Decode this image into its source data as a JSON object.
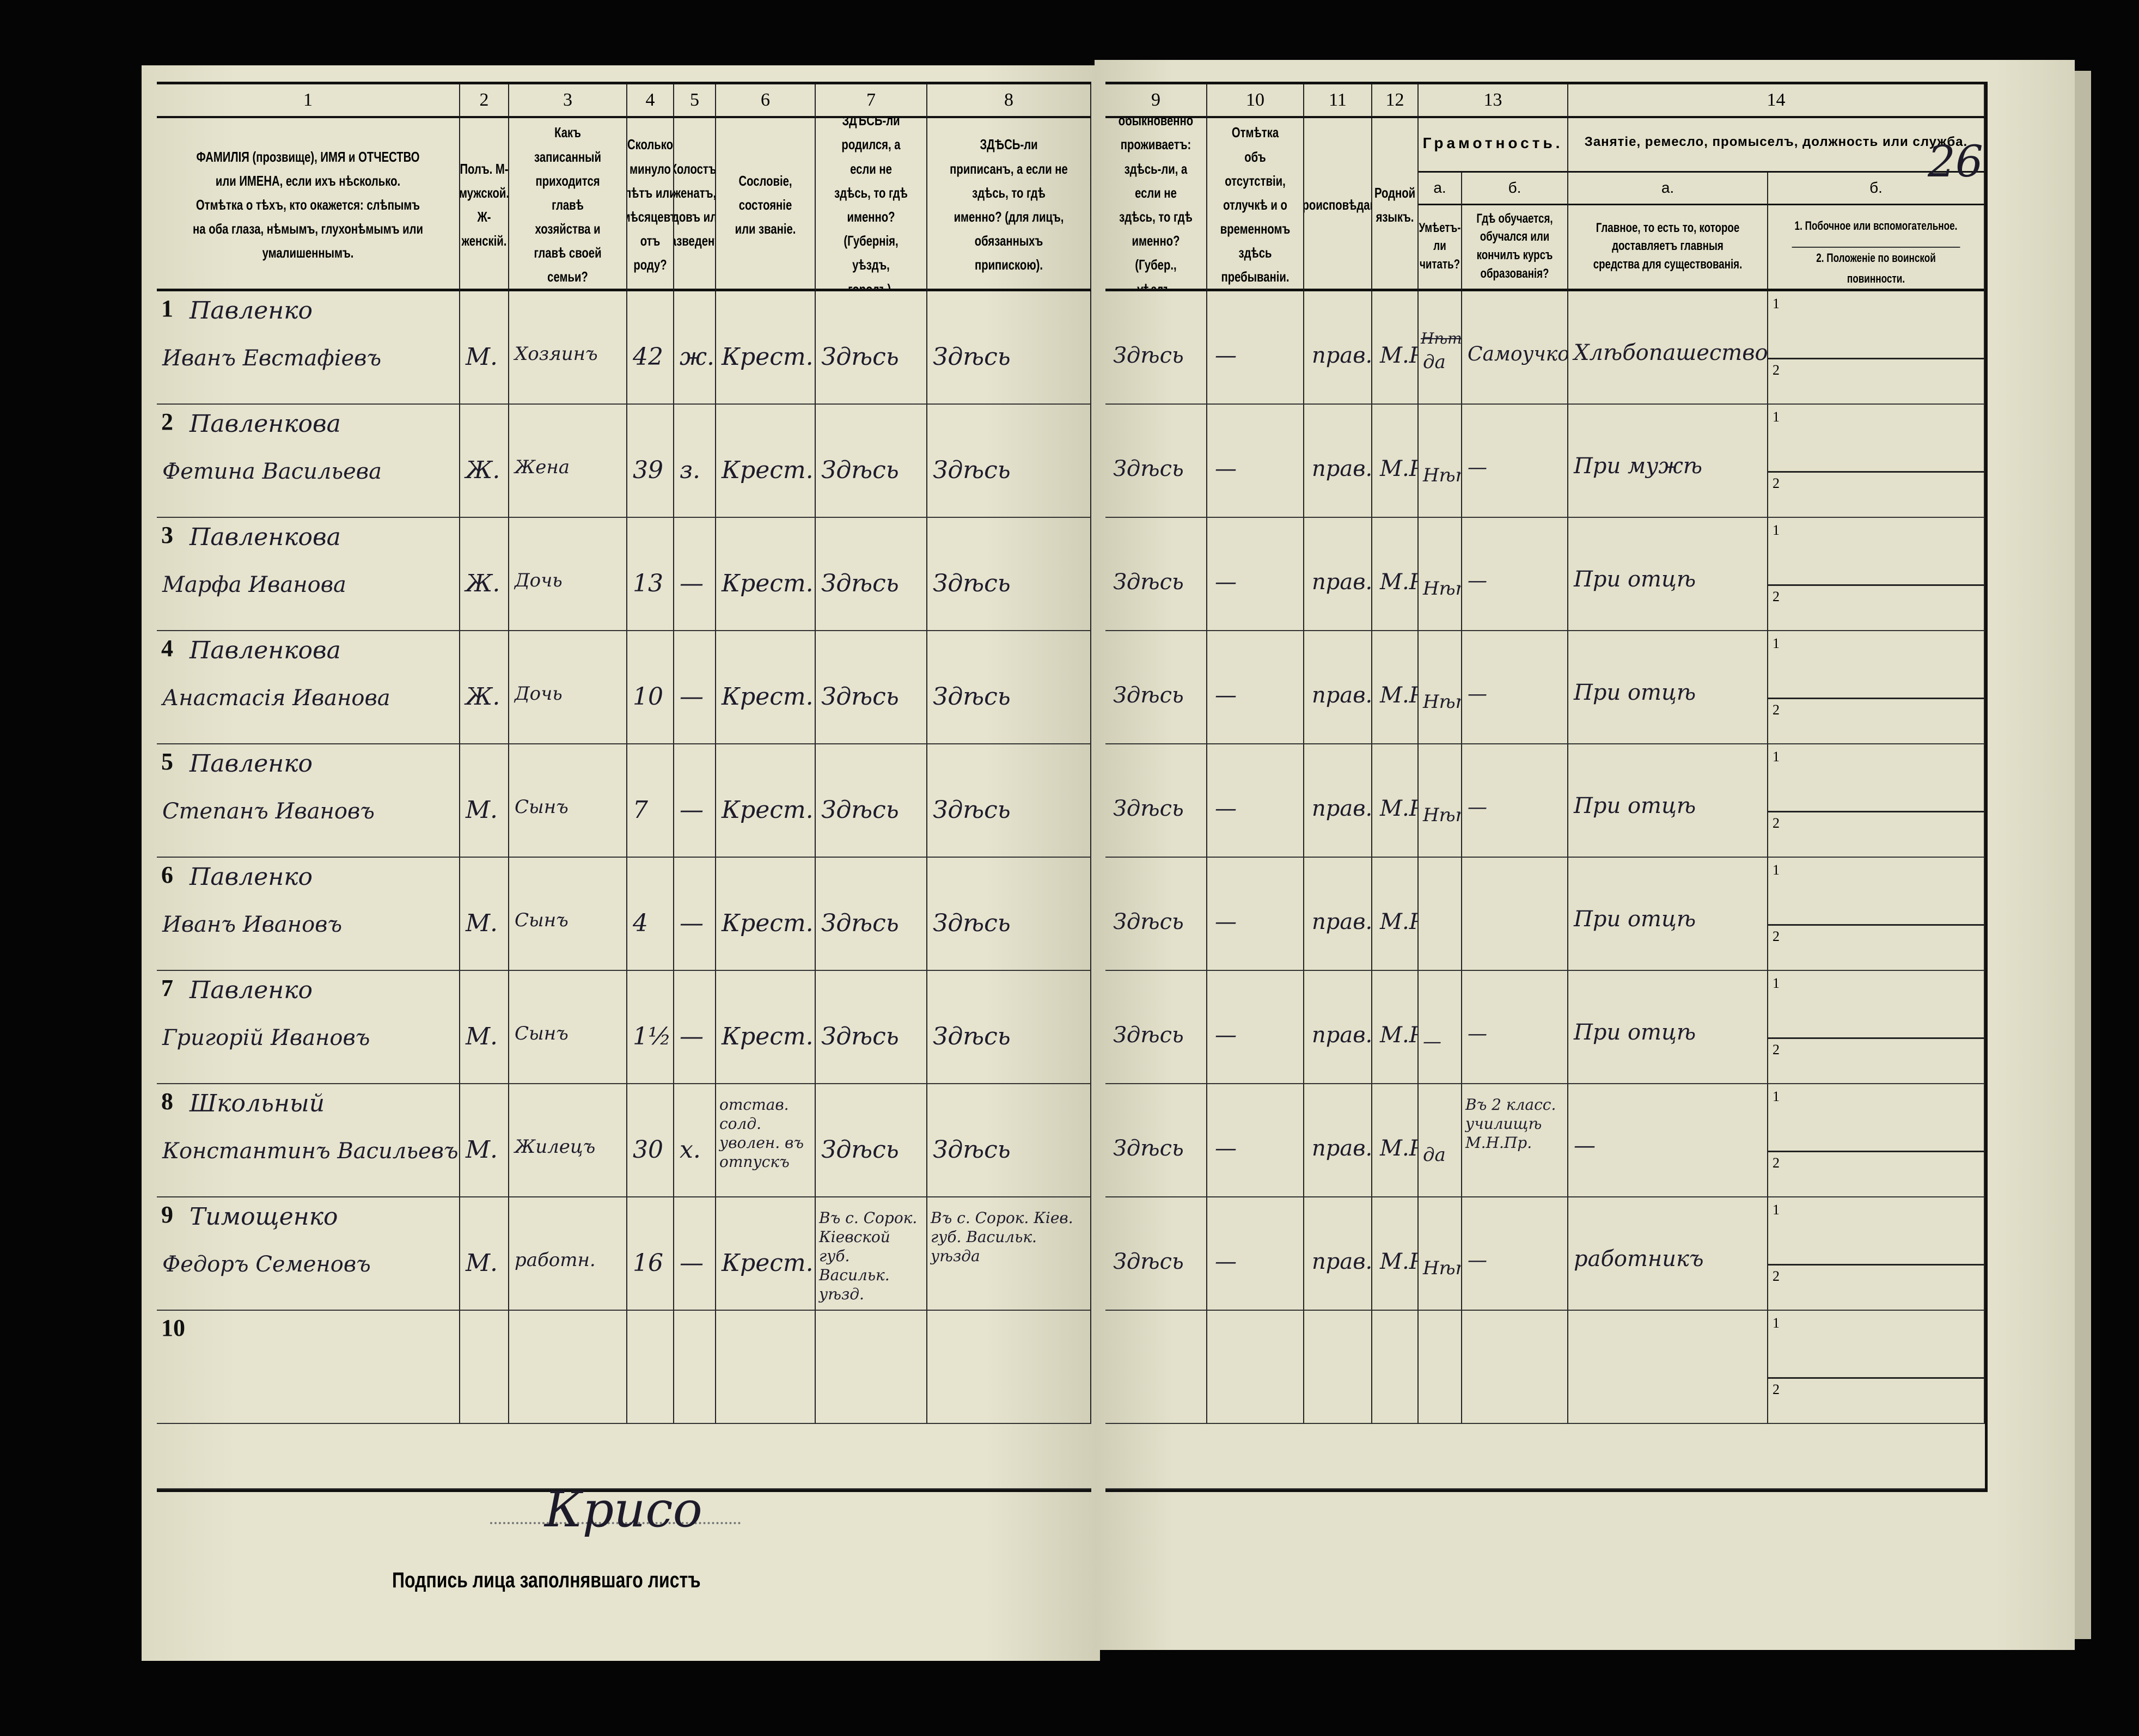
{
  "page_number": "26",
  "left_headers": [
    {
      "num": "1",
      "text": "ФАМИЛІЯ (прозвище), ИМЯ и ОТЧЕСТВО или ИМЕНА, если ихъ нѣсколько. Отмѣтка о тѣхъ, кто окажется: слѣпымъ на оба глаза, нѣмымъ, глухонѣмымъ или умалишеннымъ."
    },
    {
      "num": "2",
      "text": "Полъ. М-мужской. Ж-женскій."
    },
    {
      "num": "3",
      "text": "Какъ записанный приходится главѣ хозяйства и главѣ своей семьи?"
    },
    {
      "num": "4",
      "text": "Сколько минуло лѣтъ или мѣсяцевъ отъ роду?"
    },
    {
      "num": "5",
      "text": "Холостъ, женатъ, вдовъ или разведенъ."
    },
    {
      "num": "6",
      "text": "Сословіе, состояніе или званіе."
    },
    {
      "num": "7",
      "text": "ЗДѢСЬ-ли родился, а если не здѣсь, то гдѣ именно? (Губернія, уѣздъ, городъ)."
    },
    {
      "num": "8",
      "text": "ЗДѢСЬ-ли приписанъ, а если не здѣсь, то гдѣ именно? (для лицъ, обязанныхъ припискою)."
    }
  ],
  "right_headers": [
    {
      "num": "9",
      "text": "Гдѣ обыкновенно проживаетъ: здѣсь-ли, а если не здѣсь, то гдѣ именно? (Губер., уѣздъ, городъ)."
    },
    {
      "num": "10",
      "text": "Отмѣтка объ отсутствіи, отлучкѣ и о временномъ здѣсь пребываніи."
    },
    {
      "num": "11",
      "text": "Вѣроисповѣданіе."
    },
    {
      "num": "12",
      "text": "Родной языкъ."
    }
  ],
  "literacy": {
    "num": "13",
    "title": "Грамотность.",
    "a": "а.",
    "b": "б.",
    "a_text": "Умѣетъ-ли читать?",
    "b_text": "Гдѣ обучается, обучался или кончилъ курсъ образованія?"
  },
  "occupation": {
    "num": "14",
    "title": "Занятіе, ремесло, промыселъ, должность или служба.",
    "a": "а.",
    "b": "б.",
    "a_text": "Главное, то есть то, которое доставляетъ главныя средства для существованія.",
    "b_text_1": "1. Побочное или вспомогательное.",
    "b_text_2": "2. Положеніе по воинской повинности.",
    "sub1": "1",
    "sub2": "2"
  },
  "rows": [
    {
      "n": "1",
      "surname": "Павленко",
      "name": "Иванъ Евстафіевъ",
      "sex": "М.",
      "relation": "Хозяинъ",
      "age": "42",
      "marital": "ж.",
      "estate": "Крест.",
      "born": "Здѣсь",
      "registered": "Здѣсь",
      "resides": "Здѣсь",
      "absence": "—",
      "religion": "прав.",
      "language": "М.Р.",
      "literacy_struck": "Нѣтъ",
      "literacy": "да",
      "education": "Самоучко",
      "occupation": "Хлѣбопашество"
    },
    {
      "n": "2",
      "surname": "Павленкова",
      "name": "Фетина Васильева",
      "sex": "Ж.",
      "relation": "Жена",
      "age": "39",
      "marital": "з.",
      "estate": "Крест.",
      "born": "Здѣсь",
      "registered": "Здѣсь",
      "resides": "Здѣсь",
      "absence": "—",
      "religion": "прав.",
      "language": "М.Р.",
      "literacy": "Нѣтъ",
      "education": "—",
      "occupation": "При мужѣ"
    },
    {
      "n": "3",
      "surname": "Павленкова",
      "name": "Марфа Иванова",
      "sex": "Ж.",
      "relation": "Дочь",
      "age": "13",
      "marital": "—",
      "estate": "Крест.",
      "born": "Здѣсь",
      "registered": "Здѣсь",
      "resides": "Здѣсь",
      "absence": "—",
      "religion": "прав.",
      "language": "М.Р.",
      "literacy": "Нѣтъ",
      "education": "—",
      "occupation": "При отцѣ"
    },
    {
      "n": "4",
      "surname": "Павленкова",
      "name": "Анастасія Иванова",
      "sex": "Ж.",
      "relation": "Дочь",
      "age": "10",
      "marital": "—",
      "estate": "Крест.",
      "born": "Здѣсь",
      "registered": "Здѣсь",
      "resides": "Здѣсь",
      "absence": "—",
      "religion": "прав.",
      "language": "М.Р.",
      "literacy": "Нѣтъ",
      "education": "—",
      "occupation": "При отцѣ"
    },
    {
      "n": "5",
      "surname": "Павленко",
      "name": "Степанъ Ивановъ",
      "sex": "М.",
      "relation": "Сынъ",
      "age": "7",
      "marital": "—",
      "estate": "Крест.",
      "born": "Здѣсь",
      "registered": "Здѣсь",
      "resides": "Здѣсь",
      "absence": "—",
      "religion": "прав.",
      "language": "М.Р.",
      "literacy": "Нѣтъ",
      "education": "—",
      "occupation": "При отцѣ"
    },
    {
      "n": "6",
      "surname": "Павленко",
      "name": "Иванъ Ивановъ",
      "sex": "М.",
      "relation": "Сынъ",
      "age": "4",
      "marital": "—",
      "estate": "Крест.",
      "born": "Здѣсь",
      "registered": "Здѣсь",
      "resides": "Здѣсь",
      "absence": "—",
      "religion": "прав.",
      "language": "М.Р.",
      "literacy": "",
      "education": "",
      "occupation": "При отцѣ"
    },
    {
      "n": "7",
      "surname": "Павленко",
      "name": "Григорій Ивановъ",
      "sex": "М.",
      "relation": "Сынъ",
      "age": "1½",
      "marital": "—",
      "estate": "Крест.",
      "born": "Здѣсь",
      "registered": "Здѣсь",
      "resides": "Здѣсь",
      "absence": "—",
      "religion": "прав.",
      "language": "М.Р.",
      "literacy": "—",
      "education": "—",
      "occupation": "При отцѣ"
    },
    {
      "n": "8",
      "surname": "Школьный",
      "name": "Константинъ Васильевъ",
      "sex": "М.",
      "relation": "Жилецъ",
      "age": "30",
      "marital": "х.",
      "estate": "отстав. солд. уволен. въ отпускъ",
      "born": "Здѣсь",
      "registered": "Здѣсь",
      "resides": "Здѣсь",
      "absence": "—",
      "religion": "прав.",
      "language": "М.Р.",
      "literacy": "да",
      "education": "Въ 2 класс. училищѣ М.Н.Пр.",
      "occupation": "—"
    },
    {
      "n": "9",
      "surname": "Тимощенко",
      "name": "Федоръ Семеновъ",
      "sex": "М.",
      "relation": "работн.",
      "age": "16",
      "marital": "—",
      "estate": "Крест.",
      "born": "Въ с. Сорок. Кіевской губ. Васильк. уѣзд.",
      "registered": "Въ с. Сорок. Кіев. губ. Васильк. уѣзда",
      "resides": "Здѣсь",
      "absence": "—",
      "religion": "прав.",
      "language": "М.Р.",
      "literacy": "Нѣтъ",
      "education": "—",
      "occupation": "работникъ"
    },
    {
      "n": "10"
    }
  ],
  "footer": {
    "signature_label": "Подпись лица заполнявшаго листъ",
    "signature": "Крисо"
  }
}
